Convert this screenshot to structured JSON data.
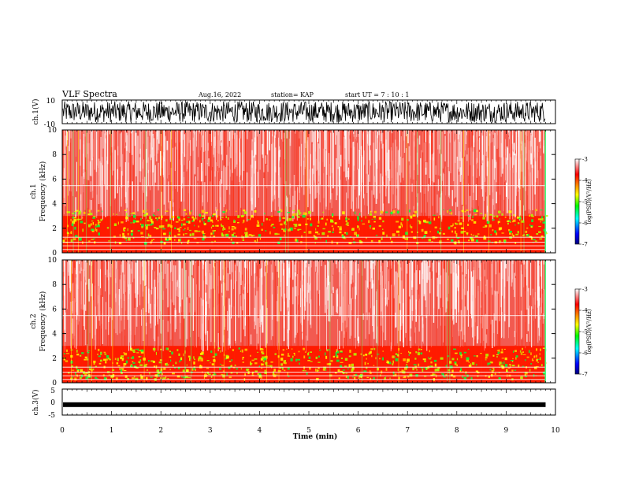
{
  "header": {
    "title": "VLF Spectra",
    "date": "Aug.16, 2022",
    "station": "station= KAP",
    "start": "start  UT =   7 : 10 : 1"
  },
  "colors": {
    "axis": "#000000",
    "background": "#ffffff",
    "colormap": [
      "#00007a",
      "#0000ff",
      "#00ffff",
      "#00ff00",
      "#ffff00",
      "#ff8000",
      "#ff0000",
      "#ffffff"
    ]
  },
  "chart_data": [
    {
      "type": "line",
      "panel": "ch1-waveform",
      "ylabel": "ch.1(V)",
      "ylim": [
        -10,
        10
      ],
      "yticks": [
        "10",
        "-10"
      ],
      "xlim": [
        0,
        10
      ],
      "signal_extent_min": 9.8,
      "description_values": {
        "amplitude_range_V": [
          -9,
          9
        ]
      }
    },
    {
      "type": "heatmap",
      "panel": "ch1-spectrogram",
      "ylabel": "ch.1\nFrequency (kHz)",
      "ylabel_top": "ch.1",
      "ylabel_bottom": "Frequency (kHz)",
      "ylim": [
        0,
        10
      ],
      "yticks": [
        "0",
        "2",
        "4",
        "6",
        "8",
        "10"
      ],
      "xlim": [
        0,
        10
      ],
      "colorbar": {
        "label": "log(PSD)(V²/Hz)",
        "range": [
          -7,
          -3
        ],
        "ticks": [
          "-3",
          "-4",
          "-5",
          "-6",
          "-7"
        ]
      }
    },
    {
      "type": "heatmap",
      "panel": "ch2-spectrogram",
      "ylabel_top": "ch.2",
      "ylabel_bottom": "Frequency (kHz)",
      "ylim": [
        0,
        10
      ],
      "yticks": [
        "0",
        "2",
        "4",
        "6",
        "8",
        "10"
      ],
      "xlim": [
        0,
        10
      ],
      "colorbar": {
        "label": "log(PSD)(V²/Hz)",
        "range": [
          -7,
          -3
        ],
        "ticks": [
          "-3",
          "-4",
          "-5",
          "-6",
          "-7"
        ]
      }
    },
    {
      "type": "line",
      "panel": "ch3-waveform",
      "ylabel": "ch.3(V)",
      "ylim": [
        -5,
        5
      ],
      "yticks": [
        "5",
        "0",
        "-5"
      ],
      "xlim": [
        0,
        10
      ],
      "level_V": -1
    }
  ],
  "xaxis": {
    "label": "Time  (min)",
    "ticks": [
      "0",
      "1",
      "2",
      "3",
      "4",
      "5",
      "6",
      "7",
      "8",
      "9",
      "10"
    ]
  }
}
